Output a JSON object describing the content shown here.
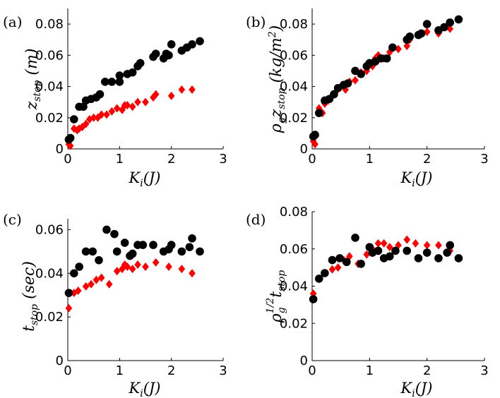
{
  "chart_data": [
    {
      "type": "scatter",
      "panel_label": "(a)",
      "xlabel": "K_i(J)",
      "ylabel": "z_stop (m)",
      "xlim": [
        0,
        3
      ],
      "ylim": [
        0,
        0.09
      ],
      "xticks": [
        "0",
        "1",
        "2",
        "3"
      ],
      "yticks": [
        "0",
        "0.02",
        "0.04",
        "0.06",
        "0.08"
      ],
      "ytick_values": [
        0,
        0.02,
        0.04,
        0.06,
        0.08
      ],
      "series": [
        {
          "name": "black circles",
          "color": "#000000",
          "marker": "circle",
          "points": [
            [
              0.02,
              0.006
            ],
            [
              0.05,
              0.007
            ],
            [
              0.12,
              0.019
            ],
            [
              0.22,
              0.027
            ],
            [
              0.3,
              0.027
            ],
            [
              0.35,
              0.031
            ],
            [
              0.45,
              0.032
            ],
            [
              0.55,
              0.033
            ],
            [
              0.62,
              0.035
            ],
            [
              0.72,
              0.043
            ],
            [
              0.85,
              0.043
            ],
            [
              1.0,
              0.043
            ],
            [
              1.0,
              0.047
            ],
            [
              1.15,
              0.048
            ],
            [
              1.25,
              0.049
            ],
            [
              1.35,
              0.053
            ],
            [
              1.4,
              0.055
            ],
            [
              1.65,
              0.059
            ],
            [
              1.7,
              0.061
            ],
            [
              1.85,
              0.058
            ],
            [
              1.9,
              0.061
            ],
            [
              1.95,
              0.06
            ],
            [
              2.0,
              0.067
            ],
            [
              2.2,
              0.063
            ],
            [
              2.3,
              0.065
            ],
            [
              2.4,
              0.067
            ],
            [
              2.55,
              0.069
            ]
          ]
        },
        {
          "name": "red diamonds",
          "color": "#ff0000",
          "marker": "diamond",
          "points": [
            [
              0.02,
              0.003
            ],
            [
              0.05,
              0.002
            ],
            [
              0.12,
              0.013
            ],
            [
              0.18,
              0.012
            ],
            [
              0.22,
              0.013
            ],
            [
              0.28,
              0.014
            ],
            [
              0.35,
              0.016
            ],
            [
              0.42,
              0.019
            ],
            [
              0.5,
              0.02
            ],
            [
              0.58,
              0.02
            ],
            [
              0.65,
              0.022
            ],
            [
              0.75,
              0.022
            ],
            [
              0.85,
              0.024
            ],
            [
              0.95,
              0.026
            ],
            [
              1.05,
              0.025
            ],
            [
              1.1,
              0.028
            ],
            [
              1.15,
              0.028
            ],
            [
              1.25,
              0.027
            ],
            [
              1.35,
              0.03
            ],
            [
              1.5,
              0.03
            ],
            [
              1.65,
              0.033
            ],
            [
              1.7,
              0.035
            ],
            [
              2.0,
              0.034
            ],
            [
              2.2,
              0.038
            ],
            [
              2.4,
              0.038
            ]
          ]
        }
      ]
    },
    {
      "type": "scatter",
      "panel_label": "(b)",
      "xlabel": "K_i(J)",
      "ylabel": "ρ_g z_stop (kg/m²)",
      "xlim": [
        0,
        3
      ],
      "ylim": [
        0,
        0.09
      ],
      "xticks": [
        "0",
        "1",
        "2",
        "3"
      ],
      "yticks": [
        "0",
        "0.02",
        "0.04",
        "0.06",
        "0.08"
      ],
      "ytick_values": [
        0,
        0.02,
        0.04,
        0.06,
        0.08
      ],
      "series": [
        {
          "name": "black circles",
          "color": "#000000",
          "marker": "circle",
          "points": [
            [
              0.02,
              0.008
            ],
            [
              0.05,
              0.009
            ],
            [
              0.12,
              0.023
            ],
            [
              0.22,
              0.031
            ],
            [
              0.3,
              0.032
            ],
            [
              0.38,
              0.035
            ],
            [
              0.45,
              0.039
            ],
            [
              0.55,
              0.041
            ],
            [
              0.62,
              0.042
            ],
            [
              0.75,
              0.05
            ],
            [
              0.85,
              0.048
            ],
            [
              0.95,
              0.053
            ],
            [
              1.0,
              0.055
            ],
            [
              1.1,
              0.056
            ],
            [
              1.2,
              0.058
            ],
            [
              1.3,
              0.058
            ],
            [
              1.4,
              0.065
            ],
            [
              1.65,
              0.07
            ],
            [
              1.7,
              0.072
            ],
            [
              1.85,
              0.073
            ],
            [
              1.9,
              0.074
            ],
            [
              2.0,
              0.08
            ],
            [
              2.2,
              0.076
            ],
            [
              2.3,
              0.078
            ],
            [
              2.4,
              0.081
            ],
            [
              2.55,
              0.083
            ]
          ]
        },
        {
          "name": "red diamonds",
          "color": "#ff0000",
          "marker": "diamond",
          "points": [
            [
              0.02,
              0.005
            ],
            [
              0.05,
              0.003
            ],
            [
              0.12,
              0.026
            ],
            [
              0.18,
              0.023
            ],
            [
              0.22,
              0.029
            ],
            [
              0.28,
              0.031
            ],
            [
              0.35,
              0.034
            ],
            [
              0.42,
              0.037
            ],
            [
              0.5,
              0.04
            ],
            [
              0.58,
              0.038
            ],
            [
              0.65,
              0.043
            ],
            [
              0.75,
              0.044
            ],
            [
              0.85,
              0.049
            ],
            [
              0.95,
              0.05
            ],
            [
              1.05,
              0.053
            ],
            [
              1.1,
              0.058
            ],
            [
              1.15,
              0.06
            ],
            [
              1.25,
              0.058
            ],
            [
              1.35,
              0.062
            ],
            [
              1.5,
              0.064
            ],
            [
              1.65,
              0.066
            ],
            [
              1.7,
              0.07
            ],
            [
              2.0,
              0.075
            ],
            [
              2.2,
              0.074
            ],
            [
              2.4,
              0.077
            ]
          ]
        }
      ]
    },
    {
      "type": "scatter",
      "panel_label": "(c)",
      "xlabel": "K_i(J)",
      "ylabel": "t_stop (sec)",
      "xlim": [
        0,
        3
      ],
      "ylim": [
        0,
        0.065
      ],
      "xticks": [
        "0",
        "1",
        "2",
        "3"
      ],
      "yticks": [
        "0",
        "0.02",
        "0.04",
        "0.06"
      ],
      "ytick_values": [
        0,
        0.02,
        0.04,
        0.06
      ],
      "series": [
        {
          "name": "black circles",
          "color": "#000000",
          "marker": "circle",
          "points": [
            [
              0.02,
              0.031
            ],
            [
              0.12,
              0.04
            ],
            [
              0.22,
              0.043
            ],
            [
              0.35,
              0.05
            ],
            [
              0.48,
              0.05
            ],
            [
              0.6,
              0.046
            ],
            [
              0.75,
              0.06
            ],
            [
              0.9,
              0.058
            ],
            [
              0.95,
              0.05
            ],
            [
              1.1,
              0.054
            ],
            [
              1.2,
              0.048
            ],
            [
              1.25,
              0.049
            ],
            [
              1.35,
              0.053
            ],
            [
              1.45,
              0.053
            ],
            [
              1.65,
              0.053
            ],
            [
              1.85,
              0.05
            ],
            [
              1.95,
              0.051
            ],
            [
              2.0,
              0.053
            ],
            [
              2.2,
              0.05
            ],
            [
              2.35,
              0.052
            ],
            [
              2.4,
              0.056
            ],
            [
              2.55,
              0.05
            ]
          ]
        },
        {
          "name": "red diamonds",
          "color": "#ff0000",
          "marker": "diamond",
          "points": [
            [
              0.02,
              0.024
            ],
            [
              0.12,
              0.031
            ],
            [
              0.2,
              0.032
            ],
            [
              0.35,
              0.034
            ],
            [
              0.45,
              0.035
            ],
            [
              0.55,
              0.037
            ],
            [
              0.65,
              0.038
            ],
            [
              0.8,
              0.035
            ],
            [
              0.95,
              0.041
            ],
            [
              1.05,
              0.042
            ],
            [
              1.1,
              0.044
            ],
            [
              1.15,
              0.043
            ],
            [
              1.25,
              0.042
            ],
            [
              1.35,
              0.044
            ],
            [
              1.5,
              0.043
            ],
            [
              1.7,
              0.045
            ],
            [
              1.95,
              0.043
            ],
            [
              2.2,
              0.042
            ],
            [
              2.4,
              0.04
            ]
          ]
        }
      ]
    },
    {
      "type": "scatter",
      "panel_label": "(d)",
      "xlabel": "K_i(J)",
      "ylabel": "ρ_g^(1/2) t_stop",
      "xlim": [
        0,
        3
      ],
      "ylim": [
        0,
        0.08
      ],
      "xticks": [
        "0",
        "1",
        "2",
        "3"
      ],
      "yticks": [
        "0",
        "0.02",
        "0.04",
        "0.06",
        "0.08"
      ],
      "ytick_values": [
        0,
        0.02,
        0.04,
        0.06,
        0.08
      ],
      "series": [
        {
          "name": "black circles",
          "color": "#000000",
          "marker": "circle",
          "points": [
            [
              0.02,
              0.033
            ],
            [
              0.12,
              0.044
            ],
            [
              0.22,
              0.047
            ],
            [
              0.35,
              0.054
            ],
            [
              0.48,
              0.055
            ],
            [
              0.6,
              0.053
            ],
            [
              0.75,
              0.066
            ],
            [
              0.85,
              0.052
            ],
            [
              1.0,
              0.061
            ],
            [
              1.05,
              0.058
            ],
            [
              1.15,
              0.059
            ],
            [
              1.25,
              0.055
            ],
            [
              1.35,
              0.056
            ],
            [
              1.45,
              0.059
            ],
            [
              1.65,
              0.059
            ],
            [
              1.85,
              0.055
            ],
            [
              2.0,
              0.058
            ],
            [
              2.2,
              0.055
            ],
            [
              2.35,
              0.058
            ],
            [
              2.4,
              0.062
            ],
            [
              2.55,
              0.055
            ]
          ]
        },
        {
          "name": "red diamonds",
          "color": "#ff0000",
          "marker": "diamond",
          "points": [
            [
              0.02,
              0.036
            ],
            [
              0.12,
              0.044
            ],
            [
              0.22,
              0.047
            ],
            [
              0.35,
              0.049
            ],
            [
              0.45,
              0.05
            ],
            [
              0.55,
              0.054
            ],
            [
              0.65,
              0.056
            ],
            [
              0.8,
              0.052
            ],
            [
              0.95,
              0.057
            ],
            [
              1.05,
              0.06
            ],
            [
              1.15,
              0.063
            ],
            [
              1.25,
              0.063
            ],
            [
              1.35,
              0.061
            ],
            [
              1.5,
              0.062
            ],
            [
              1.65,
              0.065
            ],
            [
              1.8,
              0.063
            ],
            [
              2.0,
              0.062
            ],
            [
              2.2,
              0.062
            ],
            [
              2.4,
              0.059
            ]
          ]
        }
      ]
    }
  ]
}
